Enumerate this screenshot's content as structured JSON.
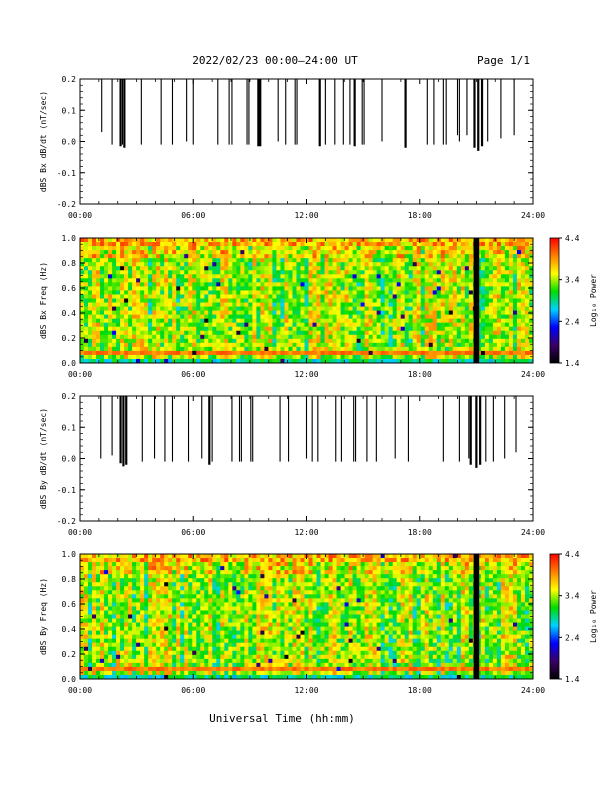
{
  "header": {
    "title": "2022/02/23  00:00–24:00 UT",
    "page": "Page 1/1"
  },
  "footer": {
    "xlabel": "Universal Time (hh:mm)"
  },
  "colors": {
    "trace": "#000000",
    "gap_band": "#000000",
    "colorscale": [
      "#000000",
      "#3a0066",
      "#0000ff",
      "#00d2ff",
      "#00dc00",
      "#ffff00",
      "#ff8000",
      "#ff0000"
    ]
  },
  "chart_data": [
    {
      "type": "line",
      "ylabel": "dBS Bx dB/dt (nT/sec)",
      "xlim": [
        "00:00",
        "24:00"
      ],
      "ylim": [
        -0.2,
        0.2
      ],
      "x_ticks": [
        "00:00",
        "06:00",
        "12:00",
        "18:00",
        "24:00"
      ],
      "y_ticks": [
        "0.2",
        "0.1",
        "0.0",
        "-0.1",
        "-0.2"
      ],
      "spikes": [
        {
          "t": 1.15,
          "low": 0.03
        },
        {
          "t": 1.7,
          "low": -0.01
        },
        {
          "t": 2.15,
          "low": -0.015
        },
        {
          "t": 2.25,
          "low": -0.01
        },
        {
          "t": 2.35,
          "low": -0.02
        },
        {
          "t": 3.25,
          "low": -0.01
        },
        {
          "t": 4.3,
          "low": -0.01
        },
        {
          "t": 4.9,
          "low": -0.01
        },
        {
          "t": 5.65,
          "low": 0.0
        },
        {
          "t": 6.0,
          "low": -0.01
        },
        {
          "t": 7.3,
          "low": -0.01
        },
        {
          "t": 7.9,
          "low": -0.01
        },
        {
          "t": 8.05,
          "low": -0.01
        },
        {
          "t": 8.85,
          "low": -0.01
        },
        {
          "t": 8.95,
          "low": -0.01
        },
        {
          "t": 9.45,
          "low": -0.015
        },
        {
          "t": 9.55,
          "low": -0.015
        },
        {
          "t": 10.5,
          "low": 0.0
        },
        {
          "t": 10.9,
          "low": -0.01
        },
        {
          "t": 11.4,
          "low": -0.01
        },
        {
          "t": 11.5,
          "low": -0.01
        },
        {
          "t": 12.7,
          "low": -0.015
        },
        {
          "t": 13.0,
          "low": -0.01
        },
        {
          "t": 13.5,
          "low": -0.01
        },
        {
          "t": 13.95,
          "low": -0.01
        },
        {
          "t": 14.3,
          "low": -0.01
        },
        {
          "t": 14.55,
          "low": -0.015
        },
        {
          "t": 14.95,
          "low": -0.01
        },
        {
          "t": 15.05,
          "low": -0.01
        },
        {
          "t": 16.0,
          "low": 0.0
        },
        {
          "t": 17.25,
          "low": -0.02
        },
        {
          "t": 18.4,
          "low": -0.01
        },
        {
          "t": 18.75,
          "low": -0.01
        },
        {
          "t": 19.25,
          "low": -0.01
        },
        {
          "t": 19.4,
          "low": -0.01
        },
        {
          "t": 20.0,
          "low": 0.02
        },
        {
          "t": 20.1,
          "low": 0.0
        },
        {
          "t": 20.5,
          "low": 0.02
        },
        {
          "t": 20.9,
          "low": -0.02
        },
        {
          "t": 21.1,
          "low": -0.03
        },
        {
          "t": 21.3,
          "low": -0.015
        },
        {
          "t": 21.6,
          "low": 0.0
        },
        {
          "t": 22.3,
          "low": 0.01
        },
        {
          "t": 23.0,
          "low": 0.02
        }
      ]
    },
    {
      "type": "heatmap",
      "ylabel": "dBS Bx Freq (Hz)",
      "xlim": [
        "00:00",
        "24:00"
      ],
      "ylim": [
        0.0,
        1.0
      ],
      "x_ticks": [
        "00:00",
        "06:00",
        "12:00",
        "18:00",
        "24:00"
      ],
      "y_ticks": [
        "1.0",
        "0.8",
        "0.6",
        "0.4",
        "0.2",
        "0.0"
      ],
      "colorbar": {
        "label": "Log₁₀ Power",
        "ticks": [
          "4.4",
          "3.4",
          "2.4",
          "1.4"
        ],
        "range": [
          1.4,
          4.4
        ]
      },
      "data_gap_hours": [
        20.85,
        21.15
      ],
      "base_level": 3.3,
      "high_freq_level": 3.8,
      "line_freq_hz": 0.08,
      "line_level": 4.0
    },
    {
      "type": "line",
      "ylabel": "dBS By dB/dt (nT/sec)",
      "xlim": [
        "00:00",
        "24:00"
      ],
      "ylim": [
        -0.2,
        0.2
      ],
      "x_ticks": [
        "00:00",
        "06:00",
        "12:00",
        "18:00",
        "24:00"
      ],
      "y_ticks": [
        "0.2",
        "0.1",
        "0.0",
        "-0.1",
        "-0.2"
      ],
      "spikes": [
        {
          "t": 1.1,
          "low": 0.0
        },
        {
          "t": 1.7,
          "low": 0.01
        },
        {
          "t": 2.15,
          "low": -0.015
        },
        {
          "t": 2.3,
          "low": -0.025
        },
        {
          "t": 2.45,
          "low": -0.02
        },
        {
          "t": 3.3,
          "low": -0.01
        },
        {
          "t": 3.95,
          "low": 0.0
        },
        {
          "t": 4.5,
          "low": -0.01
        },
        {
          "t": 4.9,
          "low": -0.01
        },
        {
          "t": 5.75,
          "low": -0.01
        },
        {
          "t": 6.45,
          "low": 0.0
        },
        {
          "t": 6.85,
          "low": -0.02
        },
        {
          "t": 7.0,
          "low": -0.01
        },
        {
          "t": 8.05,
          "low": -0.01
        },
        {
          "t": 8.45,
          "low": -0.01
        },
        {
          "t": 8.55,
          "low": -0.01
        },
        {
          "t": 9.05,
          "low": -0.01
        },
        {
          "t": 9.15,
          "low": -0.01
        },
        {
          "t": 10.6,
          "low": -0.01
        },
        {
          "t": 11.05,
          "low": -0.01
        },
        {
          "t": 12.0,
          "low": 0.0
        },
        {
          "t": 12.3,
          "low": -0.01
        },
        {
          "t": 12.6,
          "low": -0.01
        },
        {
          "t": 13.55,
          "low": -0.01
        },
        {
          "t": 13.85,
          "low": -0.01
        },
        {
          "t": 14.5,
          "low": -0.01
        },
        {
          "t": 14.6,
          "low": -0.01
        },
        {
          "t": 15.2,
          "low": -0.01
        },
        {
          "t": 15.7,
          "low": -0.01
        },
        {
          "t": 16.7,
          "low": 0.0
        },
        {
          "t": 17.4,
          "low": -0.01
        },
        {
          "t": 19.25,
          "low": -0.01
        },
        {
          "t": 20.1,
          "low": -0.01
        },
        {
          "t": 20.6,
          "low": 0.0
        },
        {
          "t": 20.7,
          "low": -0.02
        },
        {
          "t": 21.0,
          "low": -0.03
        },
        {
          "t": 21.2,
          "low": -0.02
        },
        {
          "t": 21.5,
          "low": -0.01
        },
        {
          "t": 21.9,
          "low": -0.01
        },
        {
          "t": 22.5,
          "low": 0.0
        },
        {
          "t": 23.1,
          "low": 0.02
        }
      ]
    },
    {
      "type": "heatmap",
      "ylabel": "dBS By Freq (Hz)",
      "xlim": [
        "00:00",
        "24:00"
      ],
      "ylim": [
        0.0,
        1.0
      ],
      "x_ticks": [
        "00:00",
        "06:00",
        "12:00",
        "18:00",
        "24:00"
      ],
      "y_ticks": [
        "1.0",
        "0.8",
        "0.6",
        "0.4",
        "0.2",
        "0.0"
      ],
      "colorbar": {
        "label": "Log₁₀ Power",
        "ticks": [
          "4.4",
          "3.4",
          "2.4",
          "1.4"
        ],
        "range": [
          1.4,
          4.4
        ]
      },
      "data_gap_hours": [
        20.85,
        21.15
      ],
      "base_level": 3.3,
      "high_freq_level": 3.8,
      "line_freq_hz": 0.08,
      "line_level": 4.0
    }
  ]
}
